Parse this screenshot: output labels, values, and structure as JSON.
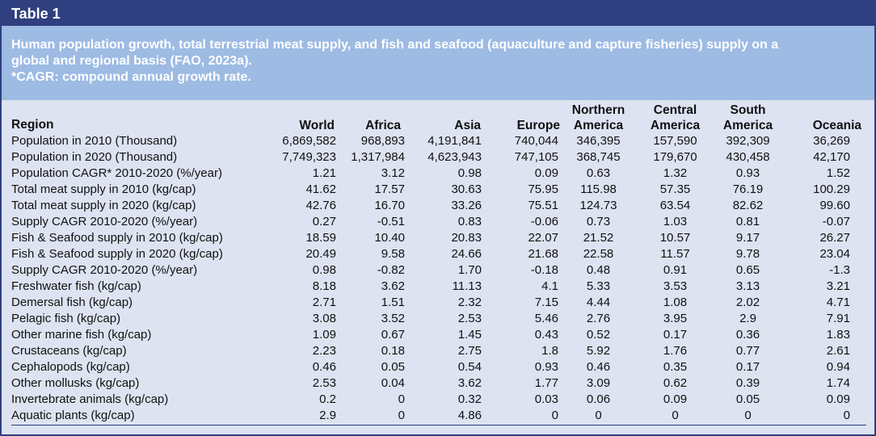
{
  "table": {
    "label": "Table 1",
    "caption_lines": [
      "Human population growth, total terrestrial meat supply, and fish and seafood (aquaculture and capture fisheries) supply on a",
      "global and regional basis (FAO, 2023a).",
      "*CAGR: compound annual growth rate."
    ],
    "row_header": "Region",
    "columns": [
      [
        "World"
      ],
      [
        "Africa"
      ],
      [
        "Asia"
      ],
      [
        "Europe"
      ],
      [
        "Northern",
        "America"
      ],
      [
        "Central",
        "America"
      ],
      [
        "South",
        "America"
      ],
      [
        "Oceania"
      ]
    ],
    "rows": [
      {
        "label": "Population in 2010 (Thousand)",
        "values": [
          "6,869,582",
          "968,893",
          "4,191,841",
          "740,044",
          "346,395",
          "157,590",
          "392,309",
          "36,269"
        ]
      },
      {
        "label": "Population in 2020 (Thousand)",
        "values": [
          "7,749,323",
          "1,317,984",
          "4,623,943",
          "747,105",
          "368,745",
          "179,670",
          "430,458",
          "42,170"
        ]
      },
      {
        "label": "Population CAGR* 2010-2020 (%/year)",
        "values": [
          "1.21",
          "3.12",
          "0.98",
          "0.09",
          "0.63",
          "1.32",
          "0.93",
          "1.52"
        ]
      },
      {
        "label": "Total meat supply in 2010 (kg/cap)",
        "values": [
          "41.62",
          "17.57",
          "30.63",
          "75.95",
          "115.98",
          "57.35",
          "76.19",
          "100.29"
        ]
      },
      {
        "label": "Total meat supply in 2020 (kg/cap)",
        "values": [
          "42.76",
          "16.70",
          "33.26",
          "75.51",
          "124.73",
          "63.54",
          "82.62",
          "99.60"
        ]
      },
      {
        "label": "Supply CAGR 2010-2020 (%/year)",
        "values": [
          "0.27",
          "-0.51",
          "0.83",
          "-0.06",
          "0.73",
          "1.03",
          "0.81",
          "-0.07"
        ]
      },
      {
        "label": "Fish & Seafood supply in 2010 (kg/cap)",
        "values": [
          "18.59",
          "10.40",
          "20.83",
          "22.07",
          "21.52",
          "10.57",
          "9.17",
          "26.27"
        ]
      },
      {
        "label": "Fish & Seafood supply in 2020 (kg/cap)",
        "values": [
          "20.49",
          "9.58",
          "24.66",
          "21.68",
          "22.58",
          "11.57",
          "9.78",
          "23.04"
        ]
      },
      {
        "label": "Supply CAGR 2010-2020 (%/year)",
        "values": [
          "0.98",
          "-0.82",
          "1.70",
          "-0.18",
          "0.48",
          "0.91",
          "0.65",
          "-1.3"
        ]
      },
      {
        "label": "Freshwater fish (kg/cap)",
        "values": [
          "8.18",
          "3.62",
          "11.13",
          "4.1",
          "5.33",
          "3.53",
          "3.13",
          "3.21"
        ]
      },
      {
        "label": "Demersal fish (kg/cap)",
        "values": [
          "2.71",
          "1.51",
          "2.32",
          "7.15",
          "4.44",
          "1.08",
          "2.02",
          "4.71"
        ]
      },
      {
        "label": "Pelagic fish (kg/cap)",
        "values": [
          "3.08",
          "3.52",
          "2.53",
          "5.46",
          "2.76",
          "3.95",
          "2.9",
          "7.91"
        ]
      },
      {
        "label": "Other marine fish (kg/cap)",
        "values": [
          "1.09",
          "0.67",
          "1.45",
          "0.43",
          "0.52",
          "0.17",
          "0.36",
          "1.83"
        ]
      },
      {
        "label": "Crustaceans (kg/cap)",
        "values": [
          "2.23",
          "0.18",
          "2.75",
          "1.8",
          "5.92",
          "1.76",
          "0.77",
          "2.61"
        ]
      },
      {
        "label": "Cephalopods (kg/cap)",
        "values": [
          "0.46",
          "0.05",
          "0.54",
          "0.93",
          "0.46",
          "0.35",
          "0.17",
          "0.94"
        ]
      },
      {
        "label": "Other mollusks (kg/cap)",
        "values": [
          "2.53",
          "0.04",
          "3.62",
          "1.77",
          "3.09",
          "0.62",
          "0.39",
          "1.74"
        ]
      },
      {
        "label": "Invertebrate animals (kg/cap)",
        "values": [
          "0.2",
          "0",
          "0.32",
          "0.03",
          "0.06",
          "0.09",
          "0.05",
          "0.09"
        ]
      },
      {
        "label": "Aquatic plants (kg/cap)",
        "values": [
          "2.9",
          "0",
          "4.86",
          "0",
          "0",
          "0",
          "0",
          "0"
        ]
      }
    ]
  }
}
